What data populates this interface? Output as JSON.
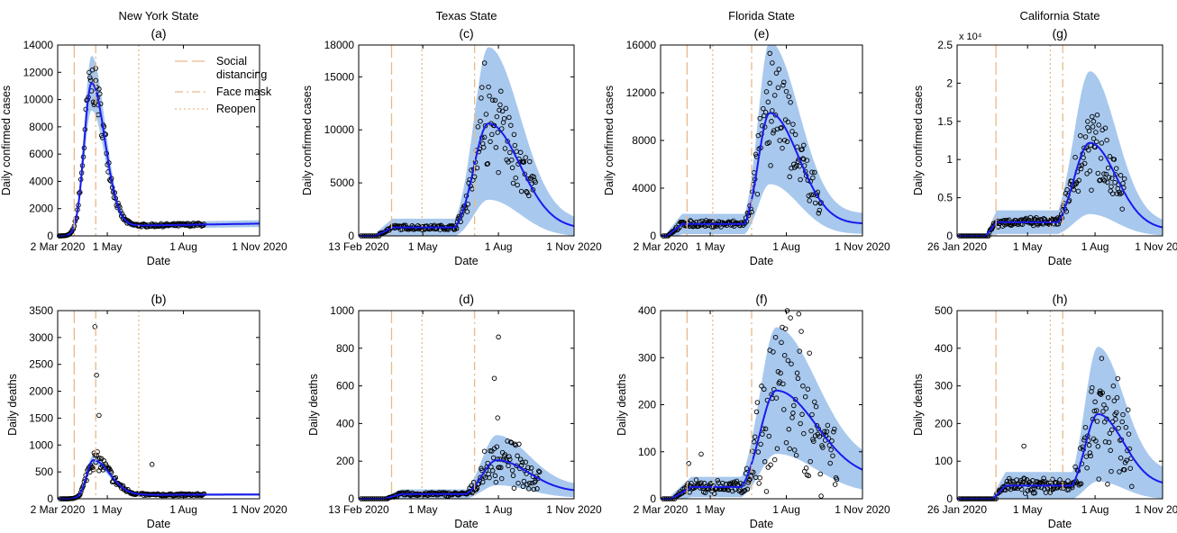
{
  "legend": {
    "entries": [
      {
        "label_lines": [
          "Social",
          "distancing"
        ],
        "style": "longdash"
      },
      {
        "label_lines": [
          "Face mask"
        ],
        "style": "dashdot"
      },
      {
        "label_lines": [
          "Reopen"
        ],
        "style": "dotted"
      }
    ]
  },
  "colors": {
    "fit": "#1a1aee",
    "band": "#a8c8ee",
    "policy": "#e8b98a",
    "points": "#000000"
  },
  "chart_data": [
    {
      "id": "a",
      "type": "line",
      "state_title": "New York State",
      "panel_label": "(a)",
      "ylabel": "Daily confirmed cases",
      "xlabel": "Date",
      "x_ticks": [
        "2 Mar 2020",
        "1 May",
        "1 Aug",
        "1 Nov 2020"
      ],
      "ylim": [
        0,
        14000
      ],
      "y_ticks": [
        "0",
        "2000",
        "4000",
        "6000",
        "8000",
        "10000",
        "12000",
        "14000"
      ],
      "exponent": "",
      "policy": {
        "social": "2020-03-22",
        "mask": "2020-04-17",
        "reopen": "2020-06-08"
      },
      "fit": {
        "peak": "2020-04-12",
        "peak_val": 11200,
        "start": "2020-03-04",
        "rise": 9,
        "fall": 16,
        "baseline": 700,
        "tail_end": 900,
        "band_frac": 0.17,
        "band_abs": 100
      },
      "observed": {
        "start": "2020-03-04",
        "end": "2020-08-26",
        "noise": 0.15,
        "scatter": 0,
        "outliers": [
          [
            "2020-04-17",
            11400
          ],
          [
            "2020-04-20",
            9600
          ]
        ]
      },
      "legend": true
    },
    {
      "id": "b",
      "type": "line",
      "state_title": "",
      "panel_label": "(b)",
      "ylabel": "Daily deaths",
      "xlabel": "Date",
      "x_ticks": [
        "2 Mar 2020",
        "1 May",
        "1 Aug",
        "1 Nov 2020"
      ],
      "ylim": [
        0,
        3500
      ],
      "y_ticks": [
        "0",
        "500",
        "1000",
        "1500",
        "2000",
        "2500",
        "3000",
        "3500"
      ],
      "exponent": "",
      "policy": {
        "social": "2020-03-22",
        "mask": "2020-04-17",
        "reopen": "2020-06-08"
      },
      "fit": {
        "peak": "2020-04-14",
        "peak_val": 720,
        "start": "2020-03-08",
        "rise": 8,
        "fall": 20,
        "baseline": 70,
        "tail_end": 80,
        "band_frac": 0.1,
        "band_abs": 15
      },
      "observed": {
        "start": "2020-03-08",
        "end": "2020-08-26",
        "noise": 0.25,
        "scatter": 0,
        "outliers": [
          [
            "2020-04-16",
            3200
          ],
          [
            "2020-04-18",
            2300
          ],
          [
            "2020-04-21",
            1550
          ],
          [
            "2020-06-24",
            640
          ]
        ]
      }
    },
    {
      "id": "c",
      "type": "line",
      "state_title": "Texas State",
      "panel_label": "(c)",
      "ylabel": "Daily confirmed cases",
      "xlabel": "Date",
      "x_ticks": [
        "13 Feb 2020",
        "1 May",
        "1 Aug",
        "1 Nov 2020"
      ],
      "ylim": [
        0,
        18000
      ],
      "y_ticks": [
        "0",
        "5000",
        "10000",
        "15000"
      ],
      "y_tick_values": [
        0,
        5000,
        10000,
        15000
      ],
      "extra_top_tick": "18000",
      "exponent": "",
      "policy": {
        "social": "2020-03-24",
        "mask": "2020-07-03",
        "reopen": "2020-04-30"
      },
      "fit": {
        "peak": "2020-07-20",
        "peak_val": 10600,
        "start": "2020-03-05",
        "rise": 18,
        "fall": 38,
        "baseline": 800,
        "tail_end": 700,
        "band_frac": 0.65,
        "band_abs": 300,
        "plateau": 800,
        "plateau_start": "2020-03-25"
      },
      "observed": {
        "start": "2020-03-10",
        "end": "2020-09-15",
        "noise": 0.25,
        "scatter": 0.25,
        "outliers": [
          [
            "2020-07-15",
            16300
          ],
          [
            "2020-07-12",
            14000
          ]
        ]
      }
    },
    {
      "id": "d",
      "type": "line",
      "state_title": "",
      "panel_label": "(d)",
      "ylabel": "Daily deaths",
      "xlabel": "Date",
      "x_ticks": [
        "13 Feb 2020",
        "1 May",
        "1 Aug",
        "1 Nov 2020"
      ],
      "ylim": [
        0,
        1000
      ],
      "y_ticks": [
        "0",
        "200",
        "400",
        "600",
        "800",
        "1000"
      ],
      "exponent": "",
      "policy": {
        "social": "2020-03-24",
        "mask": "2020-07-03",
        "reopen": "2020-04-30"
      },
      "fit": {
        "peak": "2020-07-30",
        "peak_val": 205,
        "start": "2020-03-15",
        "rise": 18,
        "fall": 40,
        "baseline": 25,
        "tail_end": 35,
        "band_frac": 0.6,
        "band_abs": 10,
        "plateau": 25,
        "plateau_start": "2020-04-05"
      },
      "observed": {
        "start": "2020-03-20",
        "end": "2020-09-20",
        "noise": 0.35,
        "scatter": 0.4,
        "outliers": [
          [
            "2020-07-27",
            640
          ],
          [
            "2020-08-01",
            860
          ],
          [
            "2020-07-31",
            430
          ]
        ]
      }
    },
    {
      "id": "e",
      "type": "line",
      "state_title": "Florida State",
      "panel_label": "(e)",
      "ylabel": "Daily confirmed cases",
      "xlabel": "Date",
      "x_ticks": [
        "2 Mar 2020",
        "1 May",
        "1 Aug",
        "1 Nov 2020"
      ],
      "ylim": [
        0,
        16000
      ],
      "y_ticks": [
        "0",
        "4000",
        "8000",
        "12000",
        "16000"
      ],
      "exponent": "",
      "policy": {
        "social": "2020-04-03",
        "mask": "2020-06-20",
        "reopen": "2020-05-04"
      },
      "fit": {
        "peak": "2020-07-12",
        "peak_val": 10300,
        "start": "2020-03-10",
        "rise": 14,
        "fall": 35,
        "baseline": 800,
        "tail_end": 1000,
        "band_frac": 0.55,
        "band_abs": 300,
        "plateau": 1000,
        "plateau_start": "2020-03-28"
      },
      "observed": {
        "start": "2020-03-12",
        "end": "2020-09-12",
        "noise": 0.25,
        "scatter": 0.25,
        "outliers": [
          [
            "2020-07-12",
            15300
          ],
          [
            "2020-07-15",
            14500
          ],
          [
            "2020-08-22",
            7600
          ]
        ]
      }
    },
    {
      "id": "f",
      "type": "line",
      "state_title": "",
      "panel_label": "(f)",
      "ylabel": "Daily deaths",
      "xlabel": "Date",
      "x_ticks": [
        "2 Mar 2020",
        "1 May",
        "1 Aug",
        "1 Nov 2020"
      ],
      "ylim": [
        0,
        400
      ],
      "y_ticks": [
        "0",
        "100",
        "200",
        "300",
        "400"
      ],
      "exponent": "",
      "policy": {
        "social": "2020-04-03",
        "mask": "2020-06-20",
        "reopen": "2020-05-04"
      },
      "fit": {
        "peak": "2020-07-20",
        "peak_val": 230,
        "start": "2020-03-15",
        "rise": 20,
        "fall": 50,
        "baseline": 25,
        "tail_end": 40,
        "band_frac": 0.55,
        "band_abs": 8,
        "plateau": 25,
        "plateau_start": "2020-04-08"
      },
      "observed": {
        "start": "2020-03-20",
        "end": "2020-10-01",
        "noise": 0.45,
        "scatter": 0.6,
        "outliers": [
          [
            "2020-04-05",
            75
          ],
          [
            "2020-04-20",
            95
          ]
        ]
      }
    },
    {
      "id": "g",
      "type": "line",
      "state_title": "California State",
      "panel_label": "(g)",
      "ylabel": "Daily confirmed cases",
      "xlabel": "Date",
      "x_ticks": [
        "26 Jan 2020",
        "1 May",
        "1 Aug",
        "1 Nov 2020"
      ],
      "ylim": [
        0,
        25000
      ],
      "y_ticks": [
        "0",
        "0.5",
        "1",
        "1.5",
        "2",
        "2.5"
      ],
      "y_tick_values": [
        0,
        5000,
        10000,
        15000,
        20000,
        25000
      ],
      "exponent": "x 10⁴",
      "policy": {
        "social": "2020-03-19",
        "mask": "2020-06-18",
        "reopen": "2020-06-01"
      },
      "fit": {
        "peak": "2020-07-25",
        "peak_val": 12200,
        "start": "2020-03-05",
        "rise": 22,
        "fall": 35,
        "baseline": 1500,
        "tail_end": 900,
        "band_frac": 0.75,
        "band_abs": 200,
        "plateau": 1800,
        "plateau_start": "2020-03-20"
      },
      "observed": {
        "start": "2020-03-10",
        "end": "2020-09-10",
        "noise": 0.25,
        "scatter": 0.3,
        "outliers": [
          [
            "2020-07-22",
            14200
          ],
          [
            "2020-07-30",
            15000
          ]
        ]
      }
    },
    {
      "id": "h",
      "type": "line",
      "state_title": "",
      "panel_label": "(h)",
      "ylabel": "Daily deaths",
      "xlabel": "Date",
      "x_ticks": [
        "26 Jan 2020",
        "1 May",
        "1 Aug",
        "1 Nov 2020"
      ],
      "ylim": [
        0,
        500
      ],
      "y_ticks": [
        "0",
        "100",
        "200",
        "300",
        "400",
        "500"
      ],
      "exponent": "",
      "policy": {
        "social": "2020-03-19",
        "mask": "2020-06-18",
        "reopen": "2020-06-01"
      },
      "fit": {
        "peak": "2020-08-05",
        "peak_val": 225,
        "start": "2020-03-15",
        "rise": 18,
        "fall": 35,
        "baseline": 30,
        "tail_end": 35,
        "band_frac": 0.75,
        "band_abs": 10,
        "plateau": 35,
        "plateau_start": "2020-04-01"
      },
      "observed": {
        "start": "2020-03-20",
        "end": "2020-09-20",
        "noise": 0.4,
        "scatter": 0.5,
        "outliers": [
          [
            "2020-04-26",
            140
          ],
          [
            "2020-08-08",
            280
          ]
        ]
      }
    }
  ]
}
